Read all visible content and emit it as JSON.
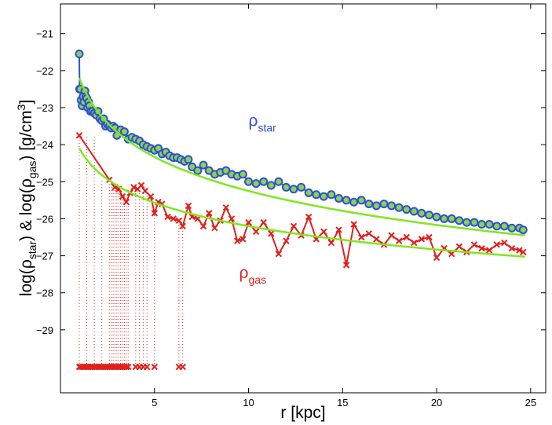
{
  "chart_data": {
    "type": "line",
    "title": "",
    "xlabel": "r [kpc]",
    "ylabel_parts": [
      "log(ρ",
      "star",
      ") & log(ρ",
      "gas",
      ") [g/cm",
      "3",
      "]"
    ],
    "xlim": [
      0,
      25.8
    ],
    "ylim": [
      -30.7,
      -20.2
    ],
    "xticks": [
      5,
      10,
      15,
      20,
      25
    ],
    "yticks": [
      -21,
      -22,
      -23,
      -24,
      -25,
      -26,
      -27,
      -28,
      -29
    ],
    "xtick_labels": [
      "5",
      "10",
      "15",
      "20",
      "25"
    ],
    "ytick_labels": [
      "−21",
      "−22",
      "−23",
      "−24",
      "−25",
      "−26",
      "−27",
      "−28",
      "−29"
    ],
    "colors": {
      "star": "#2c4fdc",
      "star_fill": "#8fd24a",
      "gas": "#e0201c",
      "fit": "#7ee81e"
    },
    "annotations": [
      {
        "base": "ρ",
        "sub": "star",
        "x": 10.0,
        "y": -23.5,
        "color": "#2c4fdc"
      },
      {
        "base": "ρ",
        "sub": "gas",
        "x": 9.5,
        "y": -27.6,
        "color": "#e0201c"
      }
    ],
    "series": [
      {
        "name": "star",
        "marker": "circle",
        "x": [
          1.0,
          1.02,
          1.05,
          1.1,
          1.15,
          1.2,
          1.25,
          1.3,
          1.35,
          1.4,
          1.45,
          1.5,
          1.55,
          1.6,
          1.7,
          1.8,
          1.9,
          2.0,
          2.1,
          2.2,
          2.3,
          2.4,
          2.5,
          2.6,
          2.7,
          2.8,
          2.9,
          3.0,
          3.2,
          3.4,
          3.6,
          3.8,
          4.0,
          4.2,
          4.4,
          4.6,
          4.8,
          5.0,
          5.2,
          5.4,
          5.6,
          5.8,
          6.0,
          6.2,
          6.4,
          6.6,
          6.8,
          7.0,
          7.3,
          7.6,
          7.9,
          8.2,
          8.5,
          8.8,
          9.1,
          9.4,
          9.7,
          10.0,
          10.4,
          10.8,
          11.2,
          11.6,
          12.0,
          12.4,
          12.8,
          13.2,
          13.6,
          14.0,
          14.4,
          14.8,
          15.2,
          15.6,
          16.0,
          16.4,
          16.8,
          17.2,
          17.6,
          18.0,
          18.4,
          18.8,
          19.2,
          19.6,
          20.0,
          20.4,
          20.8,
          21.2,
          21.6,
          22.0,
          22.4,
          22.8,
          23.2,
          23.6,
          24.0,
          24.4,
          24.6
        ],
        "y": [
          -21.55,
          -22.5,
          -22.5,
          -22.8,
          -22.95,
          -22.7,
          -22.85,
          -22.55,
          -22.7,
          -22.75,
          -23.0,
          -22.85,
          -22.95,
          -23.1,
          -23.1,
          -23.15,
          -23.2,
          -23.1,
          -23.3,
          -23.35,
          -23.3,
          -23.5,
          -23.45,
          -23.5,
          -23.55,
          -23.5,
          -23.55,
          -23.75,
          -23.6,
          -23.65,
          -23.85,
          -23.8,
          -23.85,
          -23.9,
          -24.0,
          -24.05,
          -24.1,
          -24.15,
          -24.1,
          -24.25,
          -24.2,
          -24.3,
          -24.35,
          -24.35,
          -24.4,
          -24.45,
          -24.4,
          -24.6,
          -24.7,
          -24.55,
          -24.7,
          -24.8,
          -24.75,
          -24.7,
          -24.8,
          -24.85,
          -24.8,
          -25.0,
          -25.05,
          -25.0,
          -25.1,
          -25.0,
          -25.15,
          -25.2,
          -25.15,
          -25.3,
          -25.35,
          -25.4,
          -25.35,
          -25.45,
          -25.5,
          -25.55,
          -25.5,
          -25.6,
          -25.65,
          -25.6,
          -25.65,
          -25.7,
          -25.75,
          -25.8,
          -25.85,
          -25.9,
          -25.95,
          -26.0,
          -26.0,
          -26.05,
          -26.1,
          -26.1,
          -26.15,
          -26.15,
          -26.2,
          -26.2,
          -26.25,
          -26.25,
          -26.3
        ]
      },
      {
        "name": "gas",
        "marker": "x",
        "x": [
          1.0,
          2.6,
          2.9,
          3.1,
          3.3,
          3.5,
          3.7,
          3.9,
          4.1,
          4.3,
          4.5,
          4.8,
          5.0,
          5.2,
          5.4,
          5.7,
          6.0,
          6.3,
          6.5,
          6.8,
          7.0,
          7.3,
          7.6,
          7.9,
          8.2,
          8.5,
          8.8,
          9.1,
          9.4,
          9.7,
          10.0,
          10.4,
          10.8,
          11.2,
          11.6,
          12.0,
          12.4,
          12.8,
          13.2,
          13.6,
          14.0,
          14.4,
          14.8,
          15.2,
          15.6,
          16.0,
          16.4,
          16.8,
          17.2,
          17.6,
          18.0,
          18.4,
          18.8,
          19.2,
          19.6,
          20.0,
          20.4,
          20.8,
          21.2,
          21.6,
          22.0,
          22.4,
          22.8,
          23.2,
          23.6,
          24.0,
          24.4,
          24.6
        ],
        "y": [
          -23.75,
          -24.95,
          -25.15,
          -25.2,
          -25.4,
          -25.55,
          -25.3,
          -25.15,
          -25.2,
          -25.1,
          -25.25,
          -25.4,
          -25.85,
          -25.55,
          -25.6,
          -25.95,
          -26.0,
          -26.05,
          -26.2,
          -25.65,
          -25.95,
          -26.0,
          -26.2,
          -25.85,
          -26.25,
          -26.05,
          -25.7,
          -26.0,
          -26.6,
          -26.55,
          -26.1,
          -26.35,
          -26.1,
          -26.4,
          -26.95,
          -26.6,
          -26.2,
          -26.45,
          -25.95,
          -26.55,
          -26.35,
          -26.65,
          -26.3,
          -27.25,
          -26.15,
          -26.5,
          -26.4,
          -26.55,
          -26.7,
          -26.45,
          -26.6,
          -26.5,
          -26.65,
          -26.55,
          -26.5,
          -27.05,
          -26.8,
          -26.95,
          -26.75,
          -26.9,
          -26.7,
          -26.8,
          -26.85,
          -26.7,
          -26.65,
          -26.8,
          -26.85,
          -26.9
        ]
      },
      {
        "name": "gas_lower",
        "marker": "x",
        "x": [
          1.0,
          1.1,
          1.2,
          1.3,
          1.4,
          1.5,
          1.6,
          1.7,
          1.8,
          1.9,
          2.0,
          2.1,
          2.2,
          2.3,
          2.4,
          2.5,
          2.6,
          2.7,
          2.8,
          2.9,
          3.0,
          3.1,
          3.2,
          3.3,
          3.4,
          3.5,
          3.6,
          4.0,
          4.2,
          4.4,
          4.6,
          5.0,
          6.3,
          6.5
        ],
        "y": [
          -30.0,
          -30.0,
          -30.0,
          -30.0,
          -30.0,
          -30.0,
          -30.0,
          -30.0,
          -30.0,
          -30.0,
          -30.0,
          -30.0,
          -30.0,
          -30.0,
          -30.0,
          -30.0,
          -30.0,
          -30.0,
          -30.0,
          -30.0,
          -30.0,
          -30.0,
          -30.0,
          -30.0,
          -30.0,
          -30.0,
          -30.0,
          -30.0,
          -30.0,
          -30.0,
          -30.0,
          -30.0,
          -30.0,
          -30.0
        ]
      },
      {
        "name": "star_fit",
        "model": "power_law",
        "a": -22.2,
        "b": 3.05,
        "x_range": [
          1.0,
          24.7
        ]
      },
      {
        "name": "gas_fit",
        "model": "power_law",
        "a": -24.1,
        "b": 2.1,
        "x_range": [
          1.0,
          24.7
        ]
      }
    ]
  }
}
